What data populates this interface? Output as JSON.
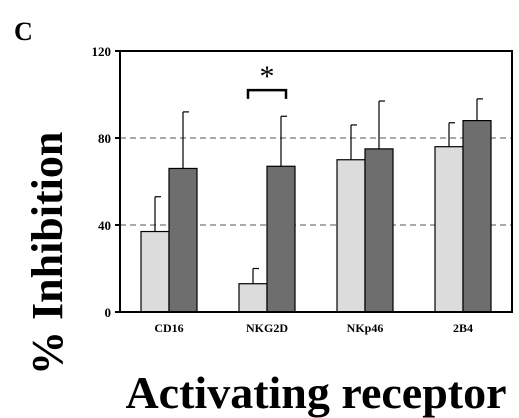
{
  "panel_label": "C",
  "chart_data": {
    "type": "bar",
    "categories": [
      "CD16",
      "NKG2D",
      "NKp46",
      "2B4"
    ],
    "series": [
      {
        "values": [
          37,
          13,
          70,
          76
        ],
        "errors": [
          16,
          7,
          16,
          11
        ],
        "color": "#dcdcdc"
      },
      {
        "values": [
          66,
          67,
          75,
          88
        ],
        "errors": [
          26,
          23,
          22,
          10
        ],
        "color": "#6e6e6e"
      }
    ],
    "ylabel": "% Inhibition",
    "xlabel": "Activating receptor",
    "yticks": [
      0,
      40,
      80,
      120
    ],
    "ytick_labels": [
      "0",
      "40",
      "80",
      "120"
    ],
    "ylim": [
      0,
      120
    ],
    "grid": "dashed horizontal",
    "annotation": {
      "text": "*",
      "between": "NKG2D"
    }
  }
}
